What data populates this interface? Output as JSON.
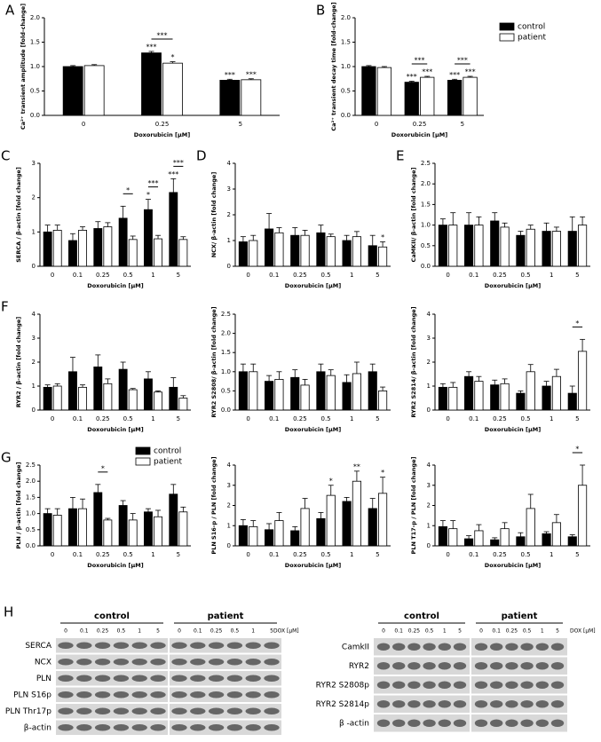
{
  "chart_data": [
    {
      "type": "bar",
      "panel": "A",
      "ylabel": "Ca²⁺ transient amplitude [fold-change]",
      "xlabel": "Doxorubicin [µM]",
      "categories": [
        "0",
        "0.25",
        "5"
      ],
      "series": [
        {
          "color": "#000000",
          "values": [
            1.0,
            1.28,
            0.72
          ],
          "errors": [
            0.02,
            0.03,
            0.02
          ],
          "annotations": [
            null,
            "***",
            "***"
          ]
        },
        {
          "color": "#ffffff",
          "values": [
            1.02,
            1.07,
            0.73
          ],
          "errors": [
            0.02,
            0.03,
            0.02
          ],
          "annotations": [
            null,
            "*",
            "***"
          ]
        }
      ],
      "comparisons": [
        null,
        "***",
        null
      ],
      "ylim": [
        0,
        2
      ],
      "yticks": [
        {
          "value": 0,
          "label": "0.0"
        },
        0.5,
        {
          "value": 1,
          "label": "1.0"
        },
        1.5,
        {
          "value": 2,
          "label": "2.0"
        }
      ]
    },
    {
      "type": "bar",
      "panel": "B",
      "ylabel": "Ca²⁺ transient decay time [fold-change]",
      "xlabel": "Doxorubicin [µM]",
      "categories": [
        "0",
        "0.25",
        "5"
      ],
      "series": [
        {
          "name": "control",
          "color": "#000000",
          "values": [
            1.0,
            0.68,
            0.72
          ],
          "errors": [
            0.02,
            0.02,
            0.02
          ],
          "annotations": [
            null,
            "***",
            "***"
          ]
        },
        {
          "name": "patient",
          "color": "#ffffff",
          "values": [
            0.98,
            0.78,
            0.78
          ],
          "errors": [
            0.02,
            0.02,
            0.02
          ],
          "annotations": [
            null,
            "***",
            "***"
          ]
        }
      ],
      "comparisons": [
        null,
        "***",
        "***"
      ],
      "legend": "right",
      "ylim": [
        0,
        2
      ],
      "yticks": [
        {
          "value": 0,
          "label": "0.0"
        },
        0.5,
        {
          "value": 1,
          "label": "1.0"
        },
        1.5,
        {
          "value": 2,
          "label": "2.0"
        }
      ]
    },
    {
      "type": "bar",
      "panel": "C",
      "ylabel": "SERCA / β-actin [fold change]",
      "xlabel": "Doxorubicin [µM]",
      "categories": [
        "0",
        "0.1",
        "0.25",
        "0.5",
        "1",
        "5"
      ],
      "series": [
        {
          "color": "#000000",
          "values": [
            1.0,
            0.75,
            1.1,
            1.4,
            1.65,
            2.15
          ],
          "errors": [
            0.2,
            0.2,
            0.2,
            0.35,
            0.3,
            0.4
          ],
          "annotations": [
            null,
            null,
            null,
            null,
            "*",
            "***"
          ]
        },
        {
          "color": "#ffffff",
          "values": [
            1.05,
            1.05,
            1.15,
            0.78,
            0.8,
            0.78
          ],
          "errors": [
            0.15,
            0.1,
            0.12,
            0.1,
            0.1,
            0.08
          ],
          "annotations": [
            null,
            null,
            null,
            null,
            null,
            null
          ]
        }
      ],
      "comparisons": [
        null,
        null,
        null,
        "*",
        "***",
        "***"
      ],
      "ylim": [
        0,
        3
      ],
      "yticks": [
        0,
        1,
        2,
        3
      ]
    },
    {
      "type": "bar",
      "panel": "D",
      "ylabel": "NCX/ β-actin [fold change]",
      "xlabel": "Doxorubicin [µM]",
      "categories": [
        "0",
        "0.1",
        "0.25",
        "0.5",
        "1",
        "5"
      ],
      "series": [
        {
          "color": "#000000",
          "values": [
            0.95,
            1.45,
            1.2,
            1.3,
            1.0,
            0.8
          ],
          "errors": [
            0.2,
            0.6,
            0.3,
            0.3,
            0.2,
            0.4
          ],
          "annotations": [
            null,
            null,
            null,
            null,
            null,
            null
          ]
        },
        {
          "color": "#ffffff",
          "values": [
            1.0,
            1.3,
            1.2,
            1.15,
            1.15,
            0.75
          ],
          "errors": [
            0.2,
            0.2,
            0.2,
            0.1,
            0.2,
            0.2
          ],
          "annotations": [
            null,
            null,
            null,
            null,
            null,
            "*"
          ]
        }
      ],
      "comparisons": [
        null,
        null,
        null,
        null,
        null,
        null
      ],
      "ylim": [
        0,
        4
      ],
      "yticks": [
        0,
        1,
        2,
        3,
        4
      ]
    },
    {
      "type": "bar",
      "panel": "E",
      "ylabel": "CaMKII/ β-actin [fold change]",
      "xlabel": "Doxorubicin [µM]",
      "categories": [
        "0",
        "0.1",
        "0.25",
        "0.5",
        "1",
        "5"
      ],
      "series": [
        {
          "color": "#000000",
          "values": [
            1.0,
            1.0,
            1.1,
            0.75,
            0.85,
            0.85
          ],
          "errors": [
            0.15,
            0.3,
            0.2,
            0.1,
            0.2,
            0.35
          ],
          "annotations": [
            null,
            null,
            null,
            null,
            null,
            null
          ]
        },
        {
          "color": "#ffffff",
          "values": [
            1.0,
            1.0,
            0.95,
            0.9,
            0.85,
            1.0
          ],
          "errors": [
            0.3,
            0.2,
            0.1,
            0.1,
            0.1,
            0.2
          ],
          "annotations": [
            null,
            null,
            null,
            null,
            null,
            null
          ]
        }
      ],
      "comparisons": [
        null,
        null,
        null,
        null,
        null,
        null
      ],
      "ylim": [
        0,
        2.5
      ],
      "yticks": [
        {
          "value": 0,
          "label": "0.0"
        },
        0.5,
        {
          "value": 1,
          "label": "1.0"
        },
        1.5,
        {
          "value": 2,
          "label": "2.0"
        },
        2.5
      ]
    },
    {
      "type": "bar",
      "panel": "F",
      "ylabel": "RYR2 / β-actin [fold change]",
      "xlabel": "Doxorubicin [µM]",
      "categories": [
        "0",
        "0.1",
        "0.25",
        "0.5",
        "1",
        "5"
      ],
      "series": [
        {
          "color": "#000000",
          "values": [
            0.95,
            1.6,
            1.8,
            1.7,
            1.3,
            0.95
          ],
          "errors": [
            0.1,
            0.6,
            0.5,
            0.3,
            0.3,
            0.4
          ],
          "annotations": [
            null,
            null,
            null,
            null,
            null,
            null
          ]
        },
        {
          "color": "#ffffff",
          "values": [
            1.0,
            0.95,
            1.1,
            0.85,
            0.75,
            0.5
          ],
          "errors": [
            0.1,
            0.1,
            0.2,
            0.05,
            0.05,
            0.1
          ],
          "annotations": [
            null,
            null,
            null,
            null,
            null,
            null
          ]
        }
      ],
      "comparisons": [
        null,
        null,
        null,
        null,
        null,
        null
      ],
      "ylim": [
        0,
        4
      ],
      "yticks": [
        0,
        1,
        2,
        3,
        4
      ]
    },
    {
      "type": "bar",
      "ylabel": "RYR2 S2808/ β-actin [fold change]",
      "xlabel": "Doxorubicin [µM]",
      "categories": [
        "0",
        "0.1",
        "0.25",
        "0.5",
        "1",
        "5"
      ],
      "series": [
        {
          "color": "#000000",
          "values": [
            1.0,
            0.75,
            0.85,
            1.0,
            0.72,
            1.0
          ],
          "errors": [
            0.2,
            0.15,
            0.2,
            0.2,
            0.2,
            0.2
          ],
          "annotations": [
            null,
            null,
            null,
            null,
            null,
            null
          ]
        },
        {
          "color": "#ffffff",
          "values": [
            1.0,
            0.8,
            0.65,
            0.9,
            0.95,
            0.5
          ],
          "errors": [
            0.2,
            0.2,
            0.15,
            0.15,
            0.3,
            0.1
          ],
          "annotations": [
            null,
            null,
            null,
            null,
            null,
            null
          ]
        }
      ],
      "comparisons": [
        null,
        null,
        null,
        null,
        null,
        null
      ],
      "ylim": [
        0,
        2.5
      ],
      "yticks": [
        {
          "value": 0,
          "label": "0.0"
        },
        0.5,
        {
          "value": 1,
          "label": "1.0"
        },
        1.5,
        {
          "value": 2,
          "label": "2.0"
        },
        2.5
      ]
    },
    {
      "type": "bar",
      "ylabel": "RYR2 S2814/ β-actin [fold change]",
      "xlabel": "Doxorubicin [µM]",
      "categories": [
        "0",
        "0.1",
        "0.25",
        "0.5",
        "1",
        "5"
      ],
      "series": [
        {
          "color": "#000000",
          "values": [
            0.95,
            1.4,
            1.05,
            0.7,
            1.0,
            0.7
          ],
          "errors": [
            0.15,
            0.2,
            0.2,
            0.1,
            0.2,
            0.3
          ],
          "annotations": [
            null,
            null,
            null,
            null,
            null,
            null
          ]
        },
        {
          "color": "#ffffff",
          "values": [
            0.95,
            1.2,
            1.1,
            1.6,
            1.4,
            2.45
          ],
          "errors": [
            0.2,
            0.2,
            0.2,
            0.3,
            0.3,
            0.5
          ],
          "annotations": [
            null,
            null,
            null,
            null,
            null,
            null
          ]
        }
      ],
      "comparisons": [
        null,
        null,
        null,
        null,
        null,
        "*"
      ],
      "ylim": [
        0,
        4
      ],
      "yticks": [
        0,
        1,
        2,
        3,
        4
      ]
    },
    {
      "type": "bar",
      "panel": "G",
      "ylabel": "PLN / β-actin [fold change]",
      "xlabel": "Doxorubicin [µM]",
      "categories": [
        "0",
        "0.1",
        "0.25",
        "0.5",
        "1",
        "5"
      ],
      "series": [
        {
          "name": "control",
          "color": "#000000",
          "values": [
            1.0,
            1.15,
            1.65,
            1.25,
            1.05,
            1.6
          ],
          "errors": [
            0.15,
            0.35,
            0.25,
            0.15,
            0.1,
            0.3
          ],
          "annotations": [
            null,
            null,
            null,
            null,
            null,
            null
          ]
        },
        {
          "name": "patient",
          "color": "#ffffff",
          "values": [
            0.95,
            1.15,
            0.8,
            0.8,
            0.9,
            1.05
          ],
          "errors": [
            0.2,
            0.3,
            0.05,
            0.2,
            0.2,
            0.15
          ],
          "annotations": [
            null,
            null,
            null,
            null,
            null,
            null
          ]
        }
      ],
      "comparisons": [
        null,
        null,
        "*",
        null,
        null,
        null
      ],
      "legend": "upper right",
      "ylim": [
        0,
        2.5
      ],
      "yticks": [
        {
          "value": 0,
          "label": "0.0"
        },
        0.5,
        {
          "value": 1,
          "label": "1.0"
        },
        1.5,
        {
          "value": 2,
          "label": "2.0"
        },
        2.5
      ]
    },
    {
      "type": "bar",
      "ylabel": "PLN S16-p / PLN [fold change]",
      "xlabel": "Doxorubicin [µM]",
      "categories": [
        "0",
        "0.1",
        "0.25",
        "0.5",
        "1",
        "5"
      ],
      "series": [
        {
          "color": "#000000",
          "values": [
            1.0,
            0.8,
            0.75,
            1.35,
            2.2,
            1.85
          ],
          "errors": [
            0.3,
            0.3,
            0.2,
            0.3,
            0.2,
            0.5
          ],
          "annotations": [
            null,
            null,
            null,
            null,
            null,
            null
          ]
        },
        {
          "color": "#ffffff",
          "values": [
            0.95,
            1.25,
            1.85,
            2.5,
            3.2,
            2.6
          ],
          "errors": [
            0.3,
            0.4,
            0.5,
            0.5,
            0.5,
            0.8
          ],
          "annotations": [
            null,
            null,
            null,
            "*",
            "**",
            "*"
          ]
        }
      ],
      "comparisons": [
        null,
        null,
        null,
        null,
        null,
        null
      ],
      "ylim": [
        0,
        4
      ],
      "yticks": [
        0,
        1,
        2,
        3,
        4
      ]
    },
    {
      "type": "bar",
      "ylabel": "PLN T17-p / PLN [fold change]",
      "xlabel": "Doxorubicin [µM]",
      "categories": [
        "0",
        "0.1",
        "0.25",
        "0.5",
        "1",
        "5"
      ],
      "series": [
        {
          "color": "#000000",
          "values": [
            0.95,
            0.35,
            0.3,
            0.45,
            0.6,
            0.45
          ],
          "errors": [
            0.3,
            0.15,
            0.1,
            0.2,
            0.1,
            0.1
          ],
          "annotations": [
            null,
            null,
            null,
            null,
            null,
            null
          ]
        },
        {
          "color": "#ffffff",
          "values": [
            0.85,
            0.75,
            0.85,
            1.85,
            1.15,
            3.0
          ],
          "errors": [
            0.4,
            0.3,
            0.3,
            0.7,
            0.4,
            1.0
          ],
          "annotations": [
            null,
            null,
            null,
            null,
            null,
            null
          ]
        }
      ],
      "comparisons": [
        null,
        null,
        null,
        null,
        null,
        "*"
      ],
      "ylim": [
        0,
        4
      ],
      "yticks": [
        0,
        1,
        2,
        3,
        4
      ]
    }
  ],
  "blots": {
    "panel": "H",
    "blocks": [
      {
        "groups": [
          "control",
          "patient"
        ],
        "doses": [
          "0",
          "0.1",
          "0.25",
          "0.5",
          "1",
          "5"
        ],
        "unit": "DOX [µM]",
        "rows": [
          "SERCA",
          "NCX",
          "PLN",
          "PLN S16p",
          "PLN Thr17p",
          "β-actin"
        ]
      },
      {
        "groups": [
          "control",
          "patient"
        ],
        "doses": [
          "0",
          "0.1",
          "0.25",
          "0.5",
          "1",
          "5"
        ],
        "unit": "DOX [µM]",
        "rows": [
          "CamkII",
          "RYR2",
          "RYR2 S2808p",
          "RYR2 S2814p",
          "β -actin"
        ]
      }
    ]
  }
}
